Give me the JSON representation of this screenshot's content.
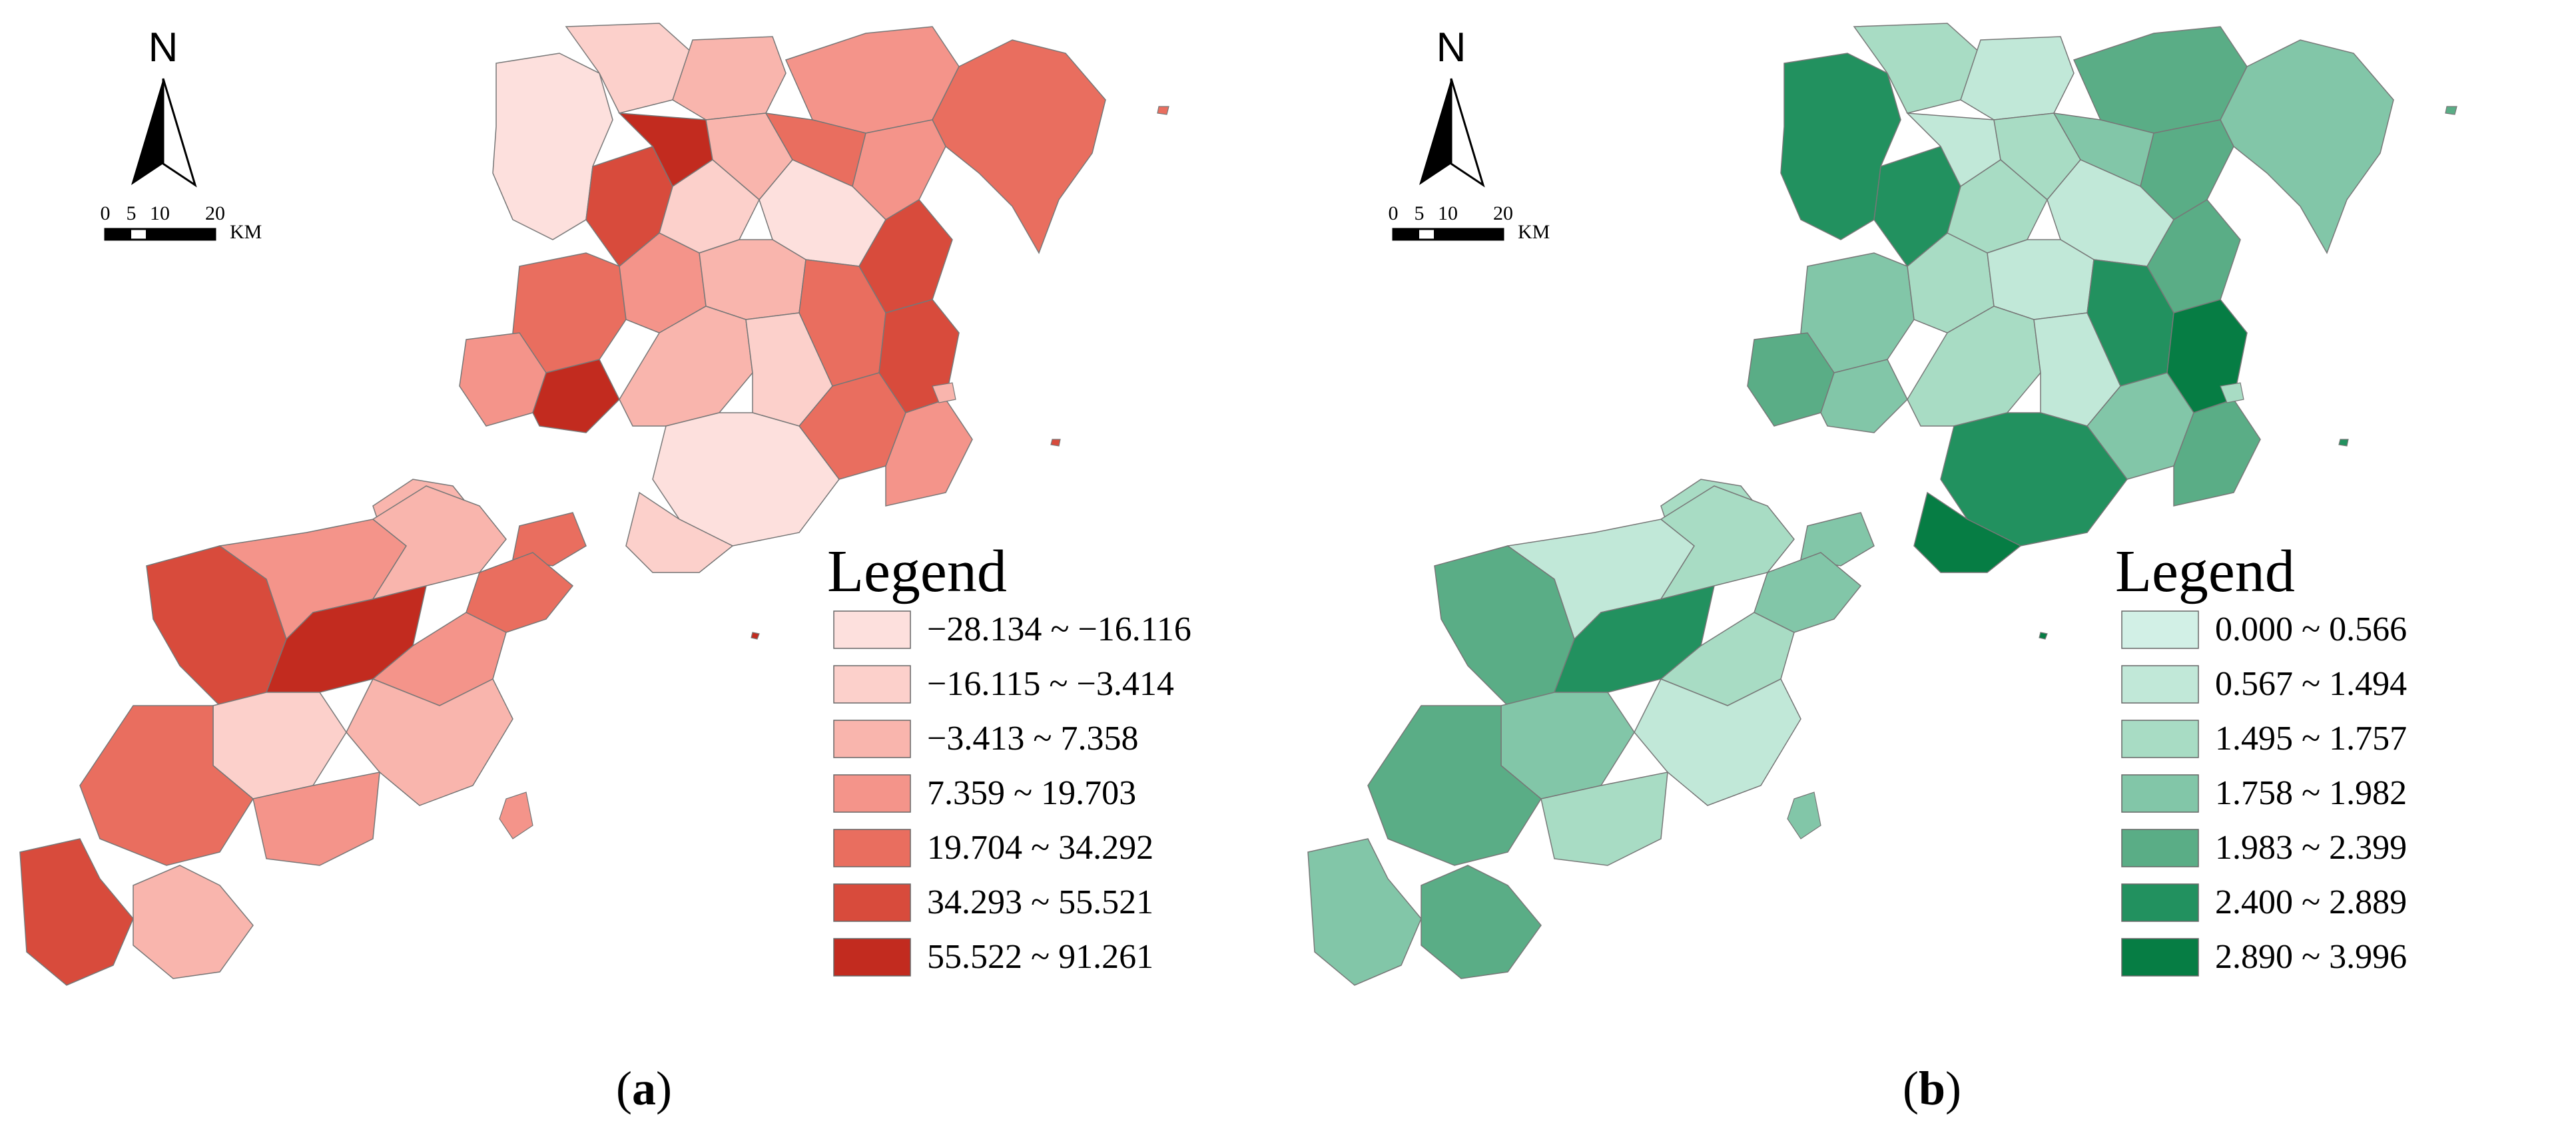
{
  "north_label": "N",
  "scale_bar": {
    "ticks": [
      "0",
      "5",
      "10",
      "20"
    ],
    "unit": "KM"
  },
  "panels": [
    {
      "id": "a",
      "label_open": "(",
      "label_letter": "a",
      "label_close": ")",
      "legend_title": "Legend",
      "classes": [
        {
          "range": "−28.134 ~ −16.116",
          "color": "#fde0dd"
        },
        {
          "range": "−16.115 ~ −3.414",
          "color": "#fcd0cb"
        },
        {
          "range": "−3.413 ~ 7.358",
          "color": "#f9b5ad"
        },
        {
          "range": "7.359 ~ 19.703",
          "color": "#f4948a"
        },
        {
          "range": "19.704 ~ 34.292",
          "color": "#e96e5f"
        },
        {
          "range": "34.293 ~ 55.521",
          "color": "#d84b3c"
        },
        {
          "range": "55.522 ~ 91.261",
          "color": "#c22b1f"
        }
      ],
      "district_classes": [
        0,
        1,
        2,
        3,
        4,
        5,
        6,
        2,
        4,
        3,
        1,
        0,
        5,
        4,
        3,
        2,
        4,
        5,
        3,
        6,
        2,
        1,
        4,
        3,
        0,
        1,
        2,
        4,
        5,
        3,
        2,
        4,
        6,
        3,
        2,
        1,
        4,
        3,
        5,
        2
      ]
    },
    {
      "id": "b",
      "label_open": "(",
      "label_letter": "b",
      "label_close": ")",
      "legend_title": "Legend",
      "classes": [
        {
          "range": "0.000 ~ 0.566",
          "color": "#d2f0e6"
        },
        {
          "range": "0.567 ~ 1.494",
          "color": "#c1e8d8"
        },
        {
          "range": "1.495 ~ 1.757",
          "color": "#a8dcc4"
        },
        {
          "range": "1.758 ~ 1.982",
          "color": "#82c6a8"
        },
        {
          "range": "1.983 ~ 2.399",
          "color": "#5aad86"
        },
        {
          "range": "2.400 ~ 2.889",
          "color": "#22915f"
        },
        {
          "range": "2.890 ~ 3.996",
          "color": "#067d44"
        }
      ],
      "district_classes": [
        5,
        2,
        1,
        4,
        3,
        5,
        1,
        2,
        3,
        4,
        2,
        1,
        4,
        3,
        2,
        1,
        5,
        6,
        4,
        3,
        2,
        1,
        3,
        4,
        5,
        6,
        2,
        3,
        4,
        1,
        2,
        3,
        5,
        2,
        1,
        3,
        4,
        2,
        3,
        4
      ]
    }
  ]
}
